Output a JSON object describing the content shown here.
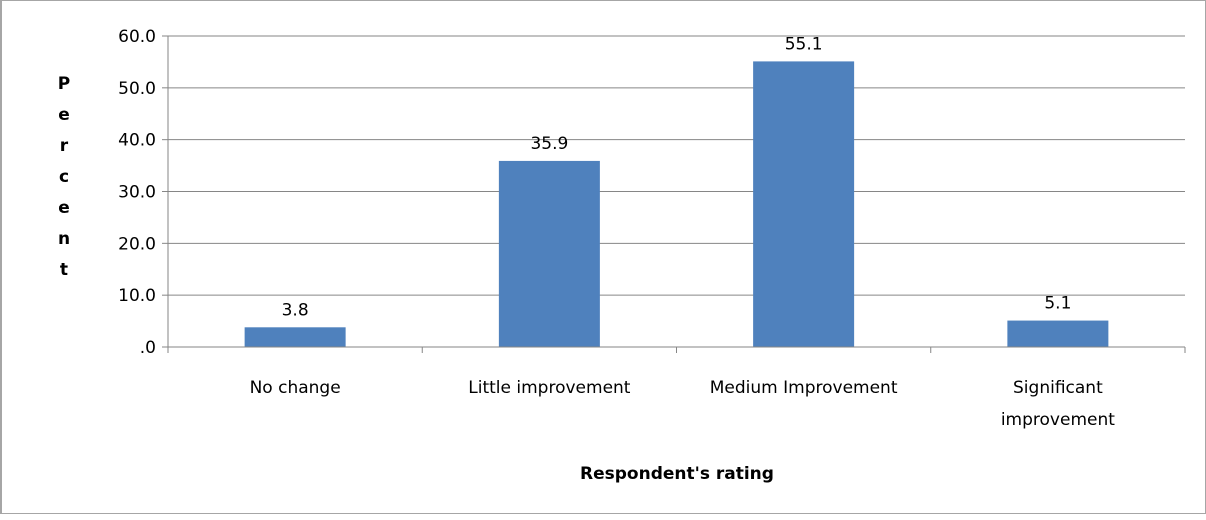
{
  "chart_data": {
    "type": "bar",
    "categories": [
      [
        "No change"
      ],
      [
        "Little improvement"
      ],
      [
        "Medium Improvement"
      ],
      [
        "Significant",
        "improvement"
      ]
    ],
    "values": [
      3.8,
      35.9,
      55.1,
      5.1
    ],
    "data_labels": [
      "3.8",
      "35.9",
      "55.1",
      "5.1"
    ],
    "ylim": [
      0,
      60
    ],
    "yticks": [
      ".0",
      "10.0",
      "20.0",
      "30.0",
      "40.0",
      "50.0",
      "60.0"
    ],
    "ytick_values": [
      0,
      10,
      20,
      30,
      40,
      50,
      60
    ],
    "ylabel": "Percent",
    "xlabel": "Respondent's rating",
    "title": "",
    "grid": true,
    "bar_color": "#4f81bd"
  }
}
